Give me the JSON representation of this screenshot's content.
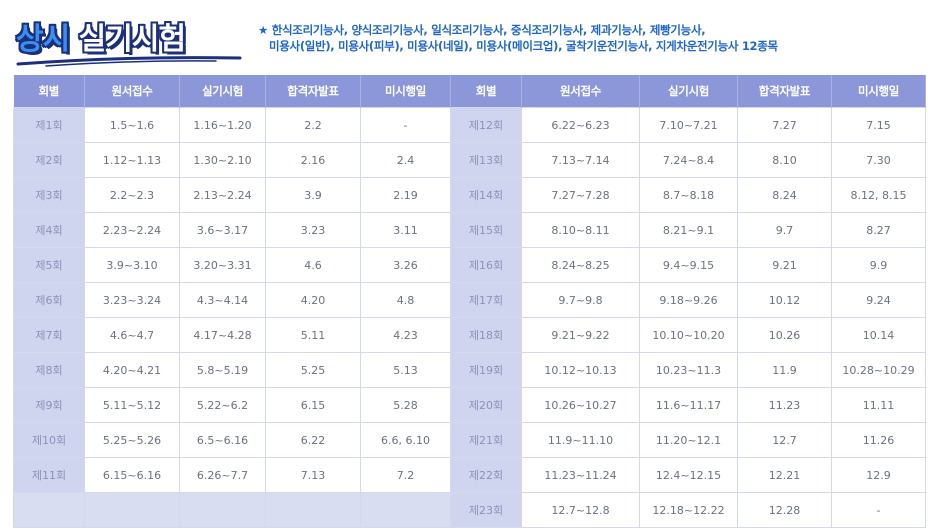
{
  "title": {
    "part1": "상시",
    "part2": "실기시험"
  },
  "notice": {
    "star": "★",
    "line1": "한식조리기능사, 양식조리기능사, 일식조리기능사, 중식조리기능사, 제과기능사, 제빵기능사,",
    "line2": "미용사(일반), 미용사(피부), 미용사(네일), 미용사(메이크업), 굴착기운전기능사, 지게차운전기능사 12종목"
  },
  "table": {
    "headers": [
      "회별",
      "원서접수",
      "실기시험",
      "합격자발표",
      "미시행일",
      "회별",
      "원서접수",
      "실기시험",
      "합격자발표",
      "미시행일"
    ],
    "rows": [
      [
        "제1회",
        "1.5~1.6",
        "1.16~1.20",
        "2.2",
        "-",
        "제12회",
        "6.22~6.23",
        "7.10~7.21",
        "7.27",
        "7.15"
      ],
      [
        "제2회",
        "1.12~1.13",
        "1.30~2.10",
        "2.16",
        "2.4",
        "제13회",
        "7.13~7.14",
        "7.24~8.4",
        "8.10",
        "7.30"
      ],
      [
        "제3회",
        "2.2~2.3",
        "2.13~2.24",
        "3.9",
        "2.19",
        "제14회",
        "7.27~7.28",
        "8.7~8.18",
        "8.24",
        "8.12, 8.15"
      ],
      [
        "제4회",
        "2.23~2.24",
        "3.6~3.17",
        "3.23",
        "3.11",
        "제15회",
        "8.10~8.11",
        "8.21~9.1",
        "9.7",
        "8.27"
      ],
      [
        "제5회",
        "3.9~3.10",
        "3.20~3.31",
        "4.6",
        "3.26",
        "제16회",
        "8.24~8.25",
        "9.4~9.15",
        "9.21",
        "9.9"
      ],
      [
        "제6회",
        "3.23~3.24",
        "4.3~4.14",
        "4.20",
        "4.8",
        "제17회",
        "9.7~9.8",
        "9.18~9.26",
        "10.12",
        "9.24"
      ],
      [
        "제7회",
        "4.6~4.7",
        "4.17~4.28",
        "5.11",
        "4.23",
        "제18회",
        "9.21~9.22",
        "10.10~10.20",
        "10.26",
        "10.14"
      ],
      [
        "제8회",
        "4.20~4.21",
        "5.8~5.19",
        "5.25",
        "5.13",
        "제19회",
        "10.12~10.13",
        "10.23~11.3",
        "11.9",
        "10.28~10.29"
      ],
      [
        "제9회",
        "5.11~5.12",
        "5.22~6.2",
        "6.15",
        "5.28",
        "제20회",
        "10.26~10.27",
        "11.6~11.17",
        "11.23",
        "11.11"
      ],
      [
        "제10회",
        "5.25~5.26",
        "6.5~6.16",
        "6.22",
        "6.6, 6.10",
        "제21회",
        "11.9~11.10",
        "11.20~12.1",
        "12.7",
        "11.26"
      ],
      [
        "제11회",
        "6.15~6.16",
        "6.26~7.7",
        "7.13",
        "7.2",
        "제22회",
        "11.23~11.24",
        "12.4~12.15",
        "12.21",
        "12.9"
      ],
      [
        "",
        "",
        "",
        "",
        "",
        "제23회",
        "12.7~12.8",
        "12.18~12.22",
        "12.28",
        "-"
      ]
    ]
  }
}
